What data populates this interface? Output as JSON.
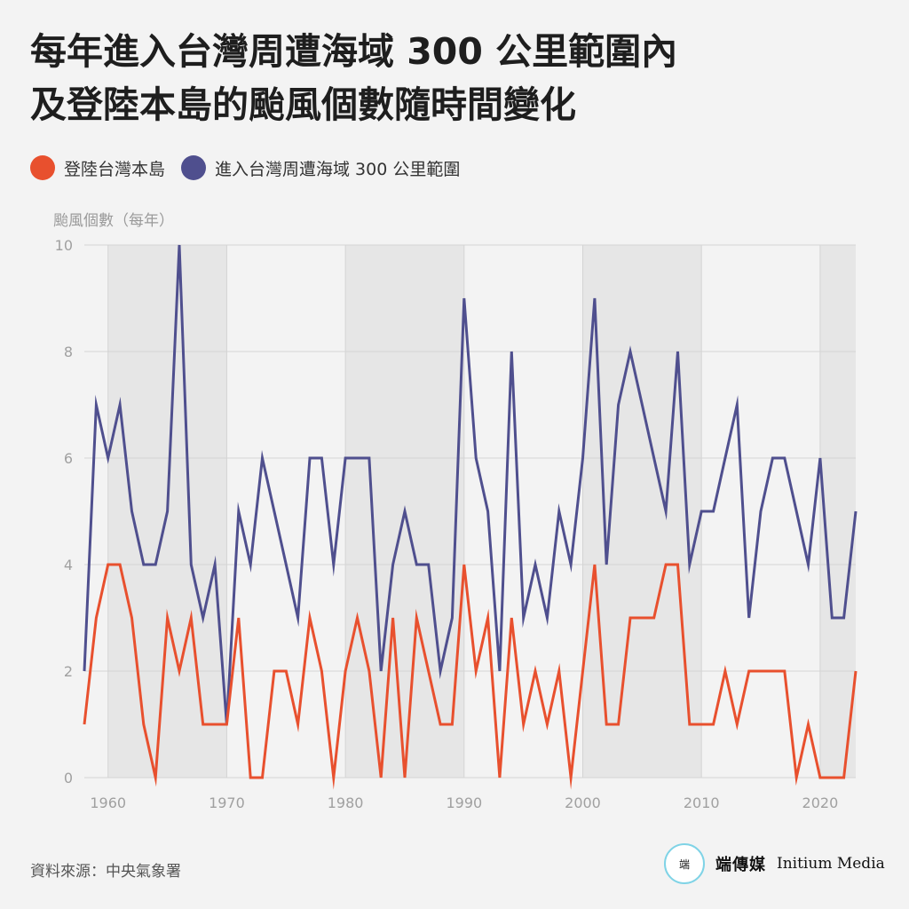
{
  "title_line1": "每年進入台灣周遭海域 300 公里範圍內",
  "title_line2": "及登陸本島的颱風個數隨時間變化",
  "legend": {
    "landfall_label": "登陸台灣本島",
    "nearby_label": "進入台灣周遭海域 300 公里範圍",
    "landfall_color": "#e8502e",
    "nearby_color": "#4f4f8e"
  },
  "source": "資料來源：中央氣象署",
  "brand": {
    "logo_text": "端",
    "name_cn": "端傳媒",
    "name_en": "Initium Media"
  },
  "chart_data": {
    "type": "line",
    "ylabel": "颱風個數（每年）",
    "xlim": [
      1958,
      2023
    ],
    "ylim": [
      0,
      10
    ],
    "yticks": [
      0,
      2,
      4,
      6,
      8,
      10
    ],
    "xticks": [
      1960,
      1970,
      1980,
      1990,
      2000,
      2010,
      2020
    ],
    "shaded_decades": [
      [
        1960,
        1970
      ],
      [
        1980,
        1990
      ],
      [
        2000,
        2010
      ],
      [
        2020,
        2023
      ]
    ],
    "grid": true,
    "x": [
      1958,
      1959,
      1960,
      1961,
      1962,
      1963,
      1964,
      1965,
      1966,
      1967,
      1968,
      1969,
      1970,
      1971,
      1972,
      1973,
      1974,
      1975,
      1976,
      1977,
      1978,
      1979,
      1980,
      1981,
      1982,
      1983,
      1984,
      1985,
      1986,
      1987,
      1988,
      1989,
      1990,
      1991,
      1992,
      1993,
      1994,
      1995,
      1996,
      1997,
      1998,
      1999,
      2000,
      2001,
      2002,
      2003,
      2004,
      2005,
      2006,
      2007,
      2008,
      2009,
      2010,
      2011,
      2012,
      2013,
      2014,
      2015,
      2016,
      2017,
      2018,
      2019,
      2020,
      2021,
      2022,
      2023
    ],
    "series": [
      {
        "name": "進入台灣周遭海域 300 公里範圍",
        "color": "#4f4f8e",
        "values": [
          2,
          7,
          6,
          7,
          5,
          4,
          4,
          5,
          10,
          4,
          3,
          4,
          1,
          5,
          4,
          6,
          5,
          4,
          3,
          6,
          6,
          4,
          6,
          6,
          6,
          2,
          4,
          5,
          4,
          4,
          2,
          3,
          9,
          6,
          5,
          2,
          8,
          3,
          4,
          3,
          5,
          4,
          6,
          9,
          4,
          7,
          8,
          7,
          6,
          5,
          8,
          4,
          5,
          5,
          6,
          7,
          3,
          5,
          6,
          6,
          5,
          4,
          6,
          3,
          3,
          5
        ]
      },
      {
        "name": "登陸台灣本島",
        "color": "#e8502e",
        "values": [
          1,
          3,
          4,
          4,
          3,
          1,
          0,
          3,
          2,
          3,
          1,
          1,
          1,
          3,
          0,
          0,
          2,
          2,
          1,
          3,
          2,
          0,
          2,
          3,
          2,
          0,
          3,
          0,
          3,
          2,
          1,
          1,
          4,
          2,
          3,
          0,
          3,
          1,
          2,
          1,
          2,
          0,
          2,
          4,
          1,
          1,
          3,
          3,
          3,
          4,
          4,
          1,
          1,
          1,
          2,
          1,
          2,
          2,
          2,
          2,
          0,
          1,
          0,
          0,
          0,
          2
        ]
      }
    ]
  }
}
